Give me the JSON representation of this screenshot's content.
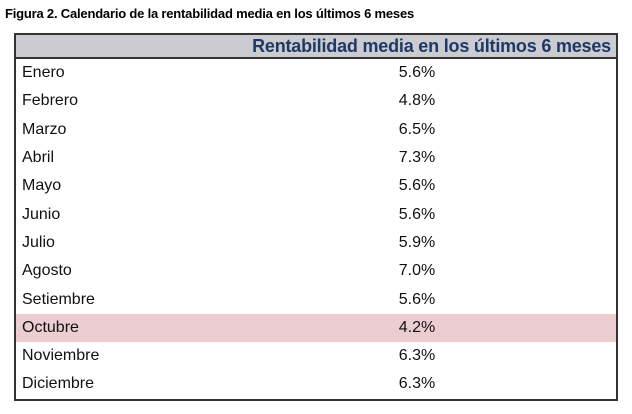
{
  "figure": {
    "title": "Figura 2. Calendario de la rentabilidad media en los últimos 6 meses"
  },
  "table": {
    "header": "Rentabilidad media en los últimos 6 meses",
    "rows": [
      {
        "month": "Enero",
        "value": "5.6%"
      },
      {
        "month": "Febrero",
        "value": "4.8%"
      },
      {
        "month": "Marzo",
        "value": "6.5%"
      },
      {
        "month": "Abril",
        "value": "7.3%"
      },
      {
        "month": "Mayo",
        "value": "5.6%"
      },
      {
        "month": "Junio",
        "value": "5.6%"
      },
      {
        "month": "Julio",
        "value": "5.9%"
      },
      {
        "month": "Agosto",
        "value": "7.0%"
      },
      {
        "month": "Setiembre",
        "value": "5.6%"
      },
      {
        "month": "Octubre",
        "value": "4.2%"
      },
      {
        "month": "Noviembre",
        "value": "6.3%"
      },
      {
        "month": "Diciembre",
        "value": "6.3%"
      }
    ],
    "highlighted_month": "Octubre"
  },
  "colors": {
    "header_bg": "#cbcbd2",
    "header_text": "#1f3864",
    "highlight_row_bg": "#ebcdd2",
    "border": "#333333"
  },
  "chart_data": {
    "type": "table",
    "title": "Rentabilidad media en los últimos 6 meses",
    "categories": [
      "Enero",
      "Febrero",
      "Marzo",
      "Abril",
      "Mayo",
      "Junio",
      "Julio",
      "Agosto",
      "Setiembre",
      "Octubre",
      "Noviembre",
      "Diciembre"
    ],
    "values": [
      5.6,
      4.8,
      6.5,
      7.3,
      5.6,
      5.6,
      5.9,
      7.0,
      5.6,
      4.2,
      6.3,
      6.3
    ],
    "unit": "%",
    "highlighted_category": "Octubre"
  }
}
